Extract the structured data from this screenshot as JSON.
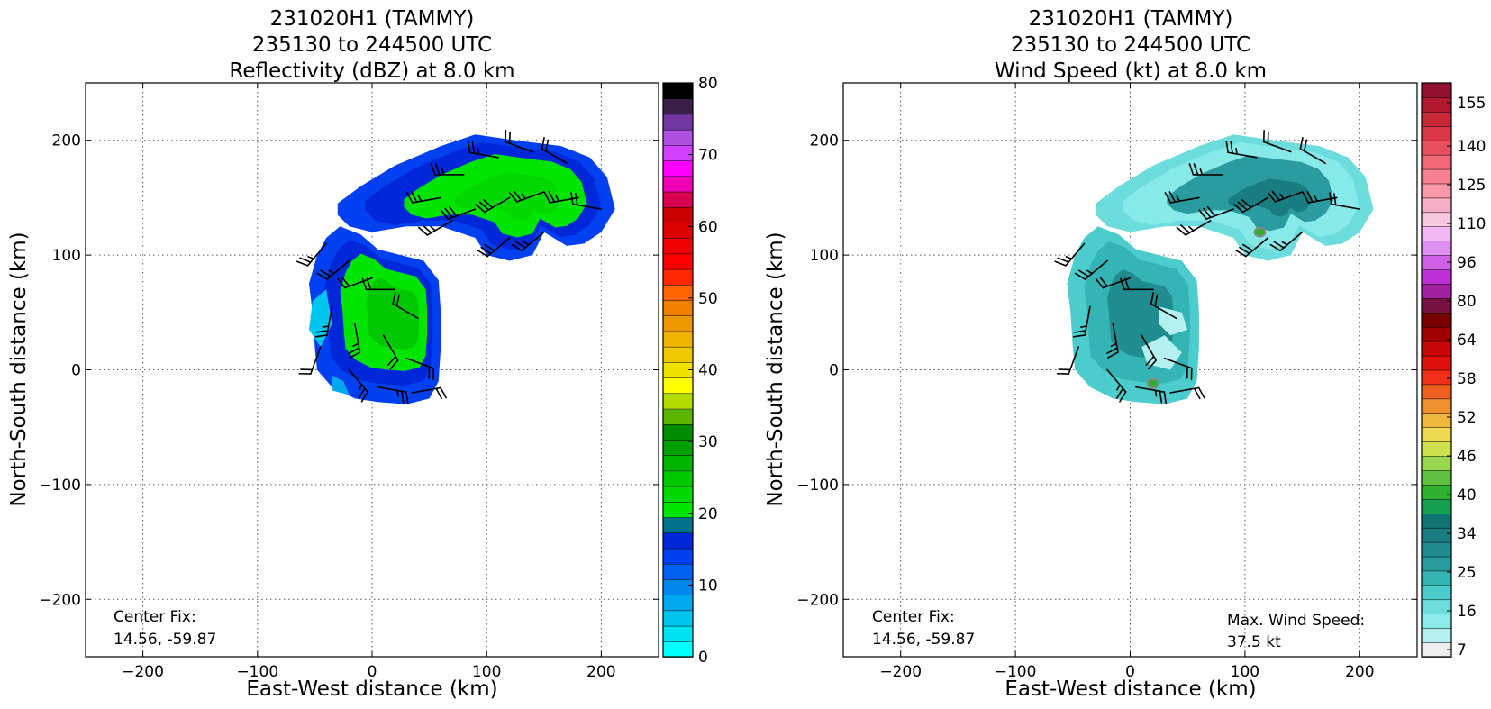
{
  "chart_data": [
    {
      "type": "heatmap",
      "title": [
        "231020H1 (TAMMY)",
        "235130 to 244500 UTC",
        "Reflectivity (dBZ) at 8.0 km"
      ],
      "xlabel": "East-West distance (km)",
      "ylabel": "North-South distance (km)",
      "xlim": [
        -250,
        250
      ],
      "ylim": [
        -250,
        250
      ],
      "xticks": [
        -200,
        -100,
        0,
        100,
        200
      ],
      "yticks": [
        -200,
        -100,
        0,
        100,
        200
      ],
      "grid": true,
      "field": "reflectivity",
      "annotations": [
        {
          "label": "Center Fix:",
          "value": "14.56, -59.87",
          "placement": "bottom-left"
        }
      ],
      "colorbar": {
        "range": [
          0,
          80
        ],
        "tick_labels": [
          "0",
          "10",
          "20",
          "30",
          "40",
          "50",
          "60",
          "70",
          "80"
        ],
        "colors": [
          "#00ffff",
          "#00e2f0",
          "#00c6ee",
          "#00a8ee",
          "#0088ee",
          "#0060f0",
          "#0040f0",
          "#0028d8",
          "#00728a",
          "#00e400",
          "#00d800",
          "#00c800",
          "#00b400",
          "#00a000",
          "#008c00",
          "#5ab400",
          "#b4dc00",
          "#ffff00",
          "#f0e000",
          "#eec800",
          "#eeb400",
          "#ee9800",
          "#ee8000",
          "#ff6400",
          "#ff2800",
          "#ff0000",
          "#ee0000",
          "#dc0000",
          "#c80000",
          "#d80050",
          "#ee00b4",
          "#ff00ff",
          "#d040ff",
          "#b050e0",
          "#7038a0",
          "#3a2048",
          "#000000"
        ]
      },
      "regions": [
        {
          "id": "northeast-band",
          "center_km": [
            130,
            160
          ],
          "extent_km": [
            -30,
            210,
            90,
            205
          ],
          "dominant_dbz": "15-25",
          "edge_dbz": "8-15"
        },
        {
          "id": "core",
          "center_km": [
            20,
            60
          ],
          "extent_km": [
            -50,
            60,
            -30,
            125
          ],
          "dominant_dbz": "18-25",
          "edge_dbz": "5-15"
        }
      ],
      "wind_barbs": [
        {
          "x": -40,
          "y": 110,
          "speed_kt": 25,
          "dir_deg": 220
        },
        {
          "x": -20,
          "y": 95,
          "speed_kt": 25,
          "dir_deg": 230
        },
        {
          "x": 0,
          "y": 80,
          "speed_kt": 20,
          "dir_deg": 250
        },
        {
          "x": 20,
          "y": 70,
          "speed_kt": 20,
          "dir_deg": 270
        },
        {
          "x": 40,
          "y": 45,
          "speed_kt": 20,
          "dir_deg": 300
        },
        {
          "x": -35,
          "y": 55,
          "speed_kt": 25,
          "dir_deg": 190
        },
        {
          "x": -15,
          "y": 40,
          "speed_kt": 25,
          "dir_deg": 170
        },
        {
          "x": 10,
          "y": 30,
          "speed_kt": 20,
          "dir_deg": 150
        },
        {
          "x": 30,
          "y": 10,
          "speed_kt": 20,
          "dir_deg": 110
        },
        {
          "x": -20,
          "y": 0,
          "speed_kt": 25,
          "dir_deg": 140
        },
        {
          "x": 5,
          "y": -15,
          "speed_kt": 25,
          "dir_deg": 100
        },
        {
          "x": 35,
          "y": -20,
          "speed_kt": 20,
          "dir_deg": 80
        },
        {
          "x": -45,
          "y": 20,
          "speed_kt": 20,
          "dir_deg": 200
        },
        {
          "x": 60,
          "y": 150,
          "speed_kt": 25,
          "dir_deg": 260
        },
        {
          "x": 80,
          "y": 170,
          "speed_kt": 25,
          "dir_deg": 270
        },
        {
          "x": 110,
          "y": 185,
          "speed_kt": 25,
          "dir_deg": 280
        },
        {
          "x": 140,
          "y": 190,
          "speed_kt": 20,
          "dir_deg": 290
        },
        {
          "x": 170,
          "y": 180,
          "speed_kt": 20,
          "dir_deg": 300
        },
        {
          "x": 90,
          "y": 140,
          "speed_kt": 30,
          "dir_deg": 250
        },
        {
          "x": 120,
          "y": 150,
          "speed_kt": 30,
          "dir_deg": 240
        },
        {
          "x": 150,
          "y": 155,
          "speed_kt": 25,
          "dir_deg": 250
        },
        {
          "x": 180,
          "y": 150,
          "speed_kt": 25,
          "dir_deg": 260
        },
        {
          "x": 200,
          "y": 140,
          "speed_kt": 20,
          "dir_deg": 280
        },
        {
          "x": 120,
          "y": 115,
          "speed_kt": 30,
          "dir_deg": 230
        },
        {
          "x": 150,
          "y": 120,
          "speed_kt": 25,
          "dir_deg": 230
        },
        {
          "x": 70,
          "y": 130,
          "speed_kt": 25,
          "dir_deg": 240
        }
      ]
    },
    {
      "type": "heatmap",
      "title": [
        "231020H1 (TAMMY)",
        "235130 to 244500 UTC",
        "Wind Speed (kt) at 8.0 km"
      ],
      "xlabel": "East-West distance (km)",
      "ylabel": "North-South distance (km)",
      "xlim": [
        -250,
        250
      ],
      "ylim": [
        -250,
        250
      ],
      "xticks": [
        -200,
        -100,
        0,
        100,
        200
      ],
      "yticks": [
        -200,
        -100,
        0,
        100,
        200
      ],
      "grid": true,
      "field": "wind_speed",
      "annotations": [
        {
          "label": "Center Fix:",
          "value": "14.56, -59.87",
          "placement": "bottom-left"
        },
        {
          "label": "Max. Wind Speed:",
          "value": "37.5 kt",
          "placement": "bottom-right"
        }
      ],
      "colorbar": {
        "tick_labels": [
          "7",
          "16",
          "25",
          "34",
          "40",
          "46",
          "52",
          "58",
          "64",
          "80",
          "96",
          "110",
          "125",
          "140",
          "155"
        ],
        "colors": [
          "#eeeeee",
          "#b4f0f0",
          "#8ceaea",
          "#6cdcdc",
          "#4ccccc",
          "#34b4b4",
          "#2a9ca0",
          "#208c90",
          "#187c80",
          "#107474",
          "#14a050",
          "#30b030",
          "#60c040",
          "#98d850",
          "#cce050",
          "#eed850",
          "#f0b840",
          "#f09030",
          "#f06020",
          "#f03018",
          "#e01010",
          "#c80808",
          "#a00000",
          "#780000",
          "#781040",
          "#a020a0",
          "#c030d8",
          "#d060e8",
          "#e090f0",
          "#f0b8f0",
          "#f8c8e0",
          "#f8b0c8",
          "#f898a8",
          "#f88090",
          "#f06878",
          "#e85060",
          "#d83848",
          "#c82838",
          "#b01830",
          "#901030"
        ]
      },
      "regions": [
        {
          "id": "northeast-band",
          "center_km": [
            130,
            160
          ],
          "extent_km": [
            50,
            200,
            95,
            205
          ],
          "dominant_kt": "18-28",
          "peak_kt": "34-37"
        },
        {
          "id": "core",
          "center_km": [
            20,
            60
          ],
          "extent_km": [
            -50,
            60,
            -30,
            125
          ],
          "dominant_kt": "16-25",
          "peak_kt": "34-37"
        }
      ],
      "max_wind_locations": [
        {
          "x": 20,
          "y": -12
        },
        {
          "x": 113,
          "y": 120
        }
      ],
      "wind_barbs": [
        {
          "x": -40,
          "y": 110,
          "speed_kt": 25,
          "dir_deg": 220
        },
        {
          "x": -20,
          "y": 95,
          "speed_kt": 25,
          "dir_deg": 230
        },
        {
          "x": 0,
          "y": 80,
          "speed_kt": 20,
          "dir_deg": 250
        },
        {
          "x": 20,
          "y": 70,
          "speed_kt": 20,
          "dir_deg": 270
        },
        {
          "x": 40,
          "y": 45,
          "speed_kt": 20,
          "dir_deg": 300
        },
        {
          "x": -35,
          "y": 55,
          "speed_kt": 25,
          "dir_deg": 190
        },
        {
          "x": -15,
          "y": 40,
          "speed_kt": 25,
          "dir_deg": 170
        },
        {
          "x": 10,
          "y": 30,
          "speed_kt": 20,
          "dir_deg": 150
        },
        {
          "x": 30,
          "y": 10,
          "speed_kt": 20,
          "dir_deg": 110
        },
        {
          "x": -20,
          "y": 0,
          "speed_kt": 25,
          "dir_deg": 140
        },
        {
          "x": 5,
          "y": -15,
          "speed_kt": 25,
          "dir_deg": 100
        },
        {
          "x": 35,
          "y": -20,
          "speed_kt": 20,
          "dir_deg": 80
        },
        {
          "x": -45,
          "y": 20,
          "speed_kt": 20,
          "dir_deg": 200
        },
        {
          "x": 60,
          "y": 150,
          "speed_kt": 25,
          "dir_deg": 260
        },
        {
          "x": 80,
          "y": 170,
          "speed_kt": 25,
          "dir_deg": 270
        },
        {
          "x": 110,
          "y": 185,
          "speed_kt": 25,
          "dir_deg": 280
        },
        {
          "x": 140,
          "y": 190,
          "speed_kt": 20,
          "dir_deg": 290
        },
        {
          "x": 170,
          "y": 180,
          "speed_kt": 20,
          "dir_deg": 300
        },
        {
          "x": 90,
          "y": 140,
          "speed_kt": 30,
          "dir_deg": 250
        },
        {
          "x": 120,
          "y": 150,
          "speed_kt": 30,
          "dir_deg": 240
        },
        {
          "x": 150,
          "y": 155,
          "speed_kt": 25,
          "dir_deg": 250
        },
        {
          "x": 180,
          "y": 150,
          "speed_kt": 25,
          "dir_deg": 260
        },
        {
          "x": 200,
          "y": 140,
          "speed_kt": 20,
          "dir_deg": 280
        },
        {
          "x": 120,
          "y": 115,
          "speed_kt": 30,
          "dir_deg": 230
        },
        {
          "x": 150,
          "y": 120,
          "speed_kt": 25,
          "dir_deg": 230
        },
        {
          "x": 70,
          "y": 130,
          "speed_kt": 25,
          "dir_deg": 240
        }
      ]
    }
  ]
}
